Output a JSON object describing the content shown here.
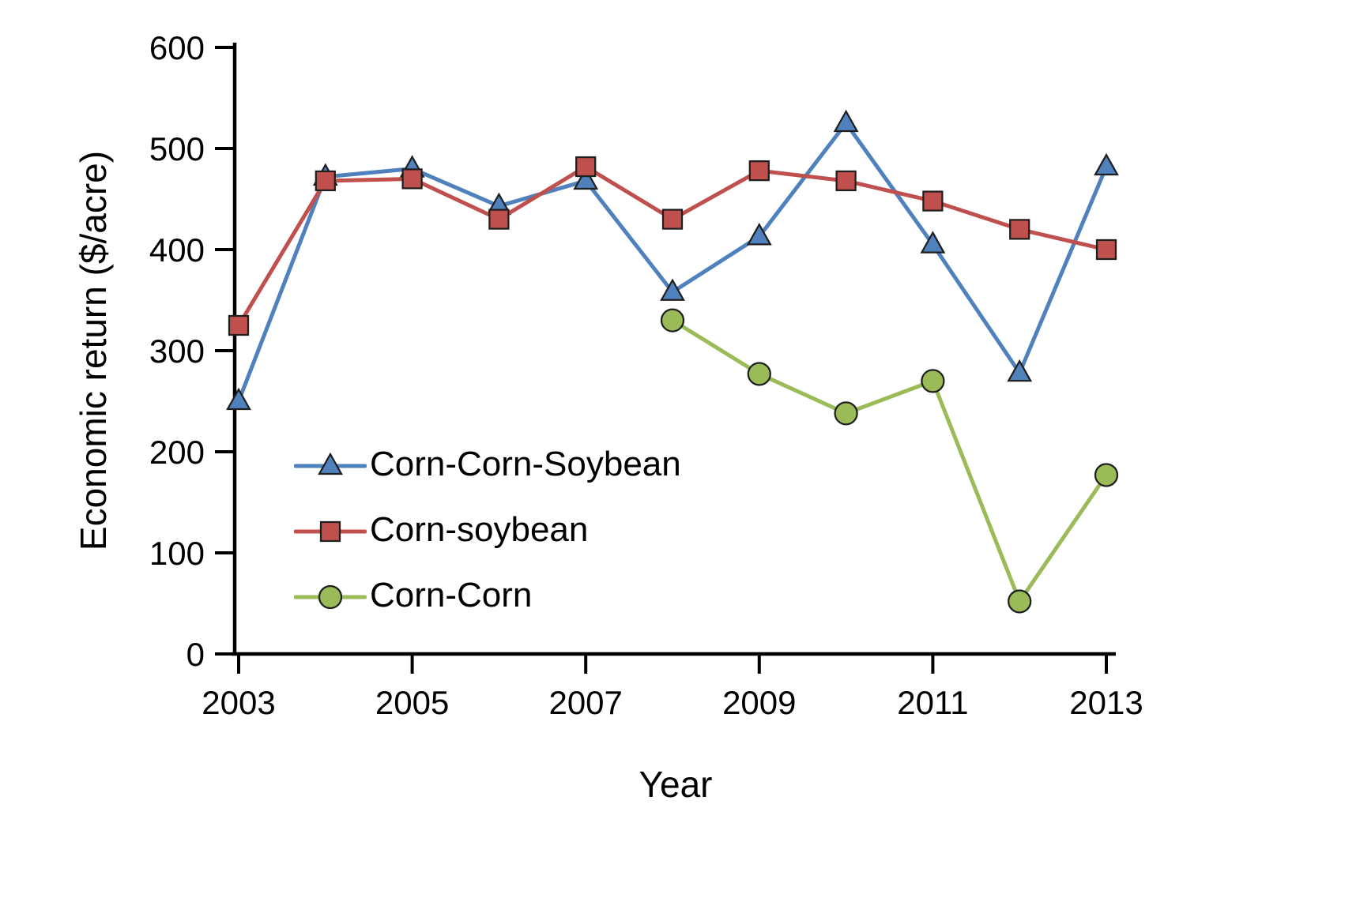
{
  "chart_data": {
    "type": "line",
    "title": "",
    "xlabel": "Year",
    "ylabel": "Economic return ($/acre)",
    "xlim": [
      2003,
      2013
    ],
    "ylim": [
      0,
      600
    ],
    "y_ticks": [
      0,
      100,
      200,
      300,
      400,
      500,
      600
    ],
    "x_ticks": [
      2003,
      2005,
      2007,
      2009,
      2011,
      2013
    ],
    "grid": false,
    "legend_position": "inside-left",
    "axis_color": "#000000",
    "marker_edge_color": "#1f1f1f",
    "series": [
      {
        "name": "Corn-Corn-Soybean",
        "color": "#4F81BD",
        "marker": "triangle",
        "x": [
          2003,
          2004,
          2005,
          2006,
          2007,
          2008,
          2009,
          2010,
          2011,
          2012,
          2013
        ],
        "values": [
          250,
          472,
          480,
          443,
          468,
          358,
          413,
          525,
          405,
          278,
          482
        ]
      },
      {
        "name": "Corn-soybean",
        "color": "#C0504D",
        "marker": "square",
        "x": [
          2003,
          2004,
          2005,
          2006,
          2007,
          2008,
          2009,
          2010,
          2011,
          2012,
          2013
        ],
        "values": [
          325,
          468,
          470,
          430,
          482,
          430,
          478,
          468,
          448,
          420,
          400
        ]
      },
      {
        "name": "Corn-Corn",
        "color": "#9BBB59",
        "marker": "circle",
        "x": [
          2008,
          2009,
          2010,
          2011,
          2012,
          2013
        ],
        "values": [
          330,
          277,
          238,
          270,
          52,
          177
        ]
      }
    ]
  }
}
